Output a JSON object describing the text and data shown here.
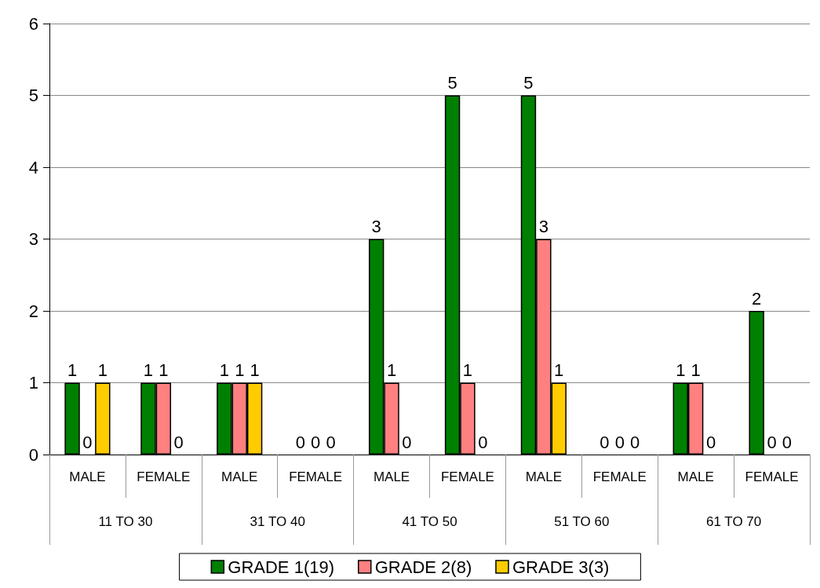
{
  "chart_data": {
    "type": "bar",
    "categories": [
      "MALE",
      "FEMALE",
      "MALE",
      "FEMALE",
      "MALE",
      "FEMALE",
      "MALE",
      "FEMALE",
      "MALE",
      "FEMALE"
    ],
    "annotations": [
      "11 TO 30",
      "31 TO 40",
      "41 TO 50",
      "51 TO 60",
      "61 TO 70"
    ],
    "series": [
      {
        "name": "GRADE 1(19)",
        "color": "#008000",
        "values": [
          1,
          1,
          1,
          0,
          3,
          5,
          5,
          0,
          1,
          2
        ]
      },
      {
        "name": "GRADE 2(8)",
        "color": "#ff8080",
        "values": [
          0,
          1,
          1,
          0,
          1,
          1,
          3,
          0,
          1,
          0
        ]
      },
      {
        "name": "GRADE 3(3)",
        "color": "#ffcc00",
        "values": [
          1,
          0,
          1,
          0,
          0,
          0,
          1,
          0,
          0,
          0
        ]
      }
    ],
    "ylim": [
      0,
      6
    ],
    "yticks": [
      0,
      1,
      2,
      3,
      4,
      5,
      6
    ],
    "grid": "y",
    "legend": "bottom",
    "data_labels": true
  }
}
